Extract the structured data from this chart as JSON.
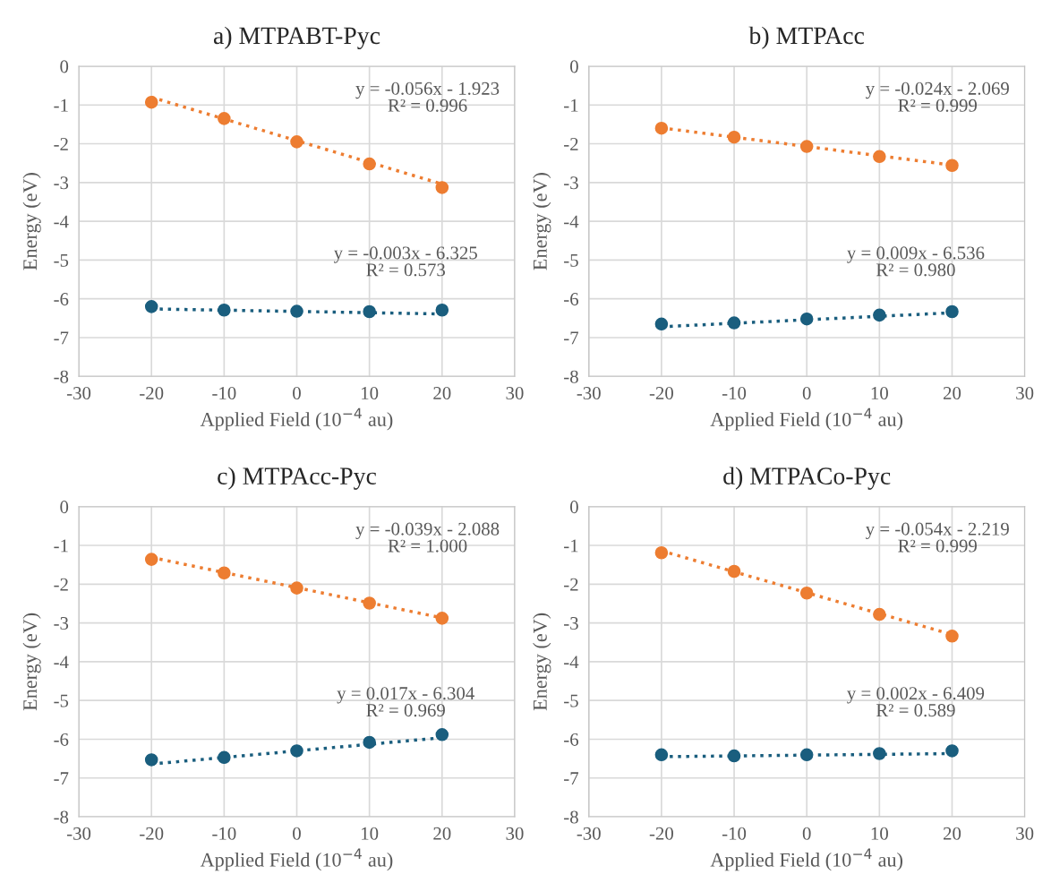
{
  "chart_data": [
    {
      "type": "scatter",
      "title": "a) MTPABT-Pyc",
      "xlabel": "Applied Field (10$^{−4}$ au)",
      "ylabel": "Energy (eV)",
      "xlim": [
        -30,
        30
      ],
      "xticks": [
        -30,
        -20,
        -10,
        0,
        10,
        20,
        30
      ],
      "ylim": [
        -8,
        0
      ],
      "yticks": [
        -8,
        -7,
        -6,
        -5,
        -4,
        -3,
        -2,
        -1,
        0
      ],
      "grid": true,
      "marker": "circle",
      "annotations": [
        "y = -0.056x - 1.923\nR² = 0.996",
        "y = -0.003x - 6.325\nR² = 0.573"
      ],
      "series": [
        {
          "color": "#ed7d31",
          "x": [
            -20,
            -10,
            0,
            10,
            20
          ],
          "values": [
            -0.93,
            -1.35,
            -1.95,
            -2.52,
            -3.13
          ]
        },
        {
          "color": "#1a5e7e",
          "x": [
            -20,
            -10,
            0,
            10,
            20
          ],
          "values": [
            -6.2,
            -6.29,
            -6.32,
            -6.33,
            -6.29
          ]
        },
        {
          "type": "line",
          "line_style": "dotted",
          "marker": "none",
          "color": "#ed7d31",
          "x": [
            -20,
            20
          ],
          "values": [
            -0.8,
            -3.04
          ]
        },
        {
          "type": "line",
          "line_style": "dotted",
          "marker": "none",
          "color": "#1a5e7e",
          "x": [
            -20,
            20
          ],
          "values": [
            -6.26,
            -6.39
          ]
        }
      ]
    },
    {
      "type": "scatter",
      "title": "b) MTPAcc",
      "xlabel": "Applied Field (10$^{−4}$ au)",
      "ylabel": "Energy (eV)",
      "xlim": [
        -30,
        30
      ],
      "xticks": [
        -30,
        -20,
        -10,
        0,
        10,
        20,
        30
      ],
      "ylim": [
        -8,
        0
      ],
      "yticks": [
        -8,
        -7,
        -6,
        -5,
        -4,
        -3,
        -2,
        -1,
        0
      ],
      "grid": true,
      "marker": "circle",
      "annotations": [
        "y = -0.024x - 2.069\nR² = 0.999",
        "y = 0.009x - 6.536\nR² = 0.980"
      ],
      "series": [
        {
          "color": "#ed7d31",
          "x": [
            -20,
            -10,
            0,
            10,
            20
          ],
          "values": [
            -1.6,
            -1.83,
            -2.07,
            -2.33,
            -2.56
          ]
        },
        {
          "color": "#1a5e7e",
          "x": [
            -20,
            -10,
            0,
            10,
            20
          ],
          "values": [
            -6.65,
            -6.62,
            -6.52,
            -6.42,
            -6.33
          ]
        },
        {
          "type": "line",
          "line_style": "dotted",
          "marker": "none",
          "color": "#ed7d31",
          "x": [
            -20,
            20
          ],
          "values": [
            -1.59,
            -2.55
          ]
        },
        {
          "type": "line",
          "line_style": "dotted",
          "marker": "none",
          "color": "#1a5e7e",
          "x": [
            -20,
            20
          ],
          "values": [
            -6.72,
            -6.36
          ]
        }
      ]
    },
    {
      "type": "scatter",
      "title": "c) MTPAcc-Pyc",
      "xlabel": "Applied Field (10$^{−4}$ au)",
      "ylabel": "Energy (eV)",
      "xlim": [
        -30,
        30
      ],
      "xticks": [
        -30,
        -20,
        -10,
        0,
        10,
        20,
        30
      ],
      "ylim": [
        -8,
        0
      ],
      "yticks": [
        -8,
        -7,
        -6,
        -5,
        -4,
        -3,
        -2,
        -1,
        0
      ],
      "grid": true,
      "marker": "circle",
      "annotations": [
        "y = -0.039x - 2.088\nR² = 1.000",
        "y = 0.017x - 6.304\nR² = 0.969"
      ],
      "series": [
        {
          "color": "#ed7d31",
          "x": [
            -20,
            -10,
            0,
            10,
            20
          ],
          "values": [
            -1.36,
            -1.71,
            -2.1,
            -2.49,
            -2.88
          ]
        },
        {
          "color": "#1a5e7e",
          "x": [
            -20,
            -10,
            0,
            10,
            20
          ],
          "values": [
            -6.53,
            -6.47,
            -6.3,
            -6.08,
            -5.88
          ]
        },
        {
          "type": "line",
          "line_style": "dotted",
          "marker": "none",
          "color": "#ed7d31",
          "x": [
            -20,
            20
          ],
          "values": [
            -1.31,
            -2.87
          ]
        },
        {
          "type": "line",
          "line_style": "dotted",
          "marker": "none",
          "color": "#1a5e7e",
          "x": [
            -20,
            20
          ],
          "values": [
            -6.64,
            -5.96
          ]
        }
      ]
    },
    {
      "type": "scatter",
      "title": "d) MTPACo-Pyc",
      "xlabel": "Applied Field (10$^{−4}$ au)",
      "ylabel": "Energy (eV)",
      "xlim": [
        -30,
        30
      ],
      "xticks": [
        -30,
        -20,
        -10,
        0,
        10,
        20,
        30
      ],
      "ylim": [
        -8,
        0
      ],
      "yticks": [
        -8,
        -7,
        -6,
        -5,
        -4,
        -3,
        -2,
        -1,
        0
      ],
      "grid": true,
      "marker": "circle",
      "annotations": [
        "y = -0.054x - 2.219\nR² = 0.999",
        "y = 0.002x - 6.409\nR² = 0.589"
      ],
      "series": [
        {
          "color": "#ed7d31",
          "x": [
            -20,
            -10,
            0,
            10,
            20
          ],
          "values": [
            -1.19,
            -1.67,
            -2.23,
            -2.78,
            -3.34
          ]
        },
        {
          "color": "#1a5e7e",
          "x": [
            -20,
            -10,
            0,
            10,
            20
          ],
          "values": [
            -6.4,
            -6.43,
            -6.4,
            -6.37,
            -6.3
          ]
        },
        {
          "type": "line",
          "line_style": "dotted",
          "marker": "none",
          "color": "#ed7d31",
          "x": [
            -20,
            20
          ],
          "values": [
            -1.14,
            -3.3
          ]
        },
        {
          "type": "line",
          "line_style": "dotted",
          "marker": "none",
          "color": "#1a5e7e",
          "x": [
            -20,
            20
          ],
          "values": [
            -6.45,
            -6.37
          ]
        }
      ]
    }
  ]
}
